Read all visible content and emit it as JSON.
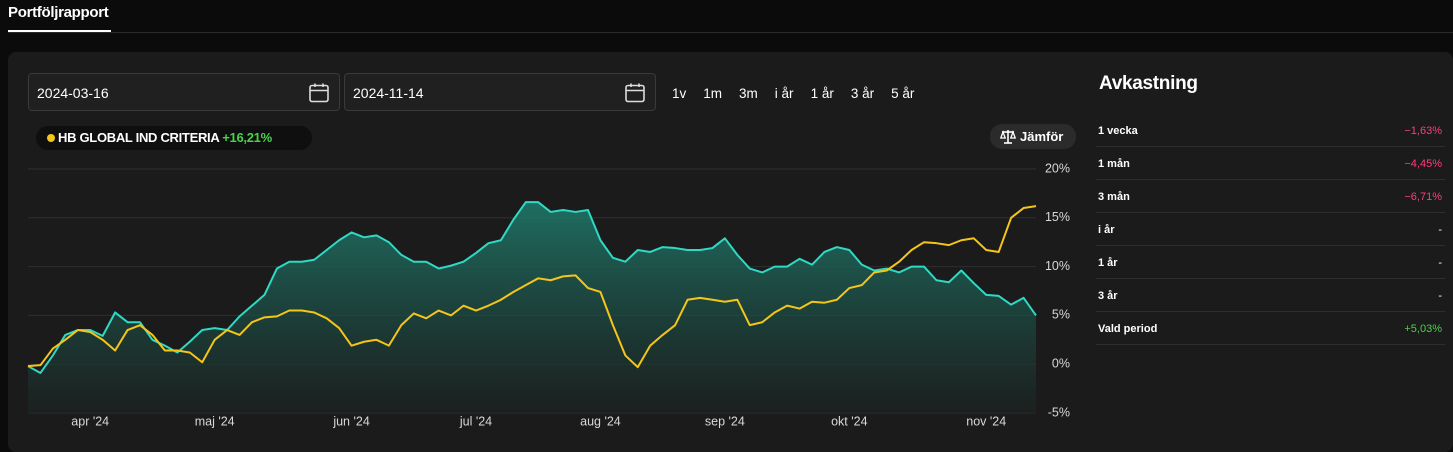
{
  "header": {
    "tab": "Portföljrapport"
  },
  "controls": {
    "start_date": "2024-03-16",
    "end_date": "2024-11-14",
    "periods": [
      "1v",
      "1m",
      "3m",
      "i år",
      "1 år",
      "3 år",
      "5 år"
    ],
    "compare": "Jämför"
  },
  "chart_data": {
    "type": "line",
    "categories": [
      null,
      null,
      null,
      null,
      null,
      "apr '24",
      null,
      null,
      null,
      null,
      null,
      null,
      null,
      null,
      null,
      "maj '24",
      null,
      null,
      null,
      null,
      null,
      null,
      null,
      null,
      null,
      null,
      "jun '24",
      null,
      null,
      null,
      null,
      null,
      null,
      null,
      null,
      null,
      "jul '24",
      null,
      null,
      null,
      null,
      null,
      null,
      null,
      null,
      null,
      "aug '24",
      null,
      null,
      null,
      null,
      null,
      null,
      null,
      null,
      null,
      "sep '24",
      null,
      null,
      null,
      null,
      null,
      null,
      null,
      null,
      null,
      "okt '24",
      null,
      null,
      null,
      null,
      null,
      null,
      null,
      null,
      null,
      null,
      "nov '24",
      null,
      null,
      null,
      null
    ],
    "series": [
      {
        "color": "#2fd9c4",
        "area": true,
        "values": [
          -0.2,
          -0.9,
          0.9,
          3.0,
          3.5,
          3.5,
          2.9,
          5.3,
          4.3,
          4.3,
          2.5,
          1.9,
          1.2,
          2.3,
          3.5,
          3.7,
          3.5,
          4.9,
          6.0,
          7.1,
          9.8,
          10.5,
          10.5,
          10.7,
          11.7,
          12.7,
          13.5,
          13.0,
          13.2,
          12.5,
          11.2,
          10.5,
          10.5,
          9.8,
          10.1,
          10.5,
          11.4,
          12.4,
          12.7,
          14.8,
          16.6,
          16.6,
          15.6,
          15.8,
          15.6,
          15.8,
          12.7,
          10.9,
          10.5,
          11.7,
          11.5,
          12.0,
          11.9,
          11.7,
          11.7,
          11.9,
          12.9,
          11.2,
          9.8,
          9.4,
          10.0,
          10.0,
          10.8,
          10.2,
          11.5,
          12.0,
          11.7,
          10.2,
          9.6,
          9.8,
          9.4,
          10.0,
          10.0,
          8.6,
          8.4,
          9.6,
          8.3,
          7.1,
          7.0,
          6.1,
          6.8,
          5.0
        ]
      },
      {
        "name": "HB GLOBAL IND CRITERIA",
        "return_label": "+16,21%",
        "color": "#f5c518",
        "values": [
          -0.2,
          -0.1,
          1.6,
          2.5,
          3.5,
          3.3,
          2.5,
          1.4,
          3.5,
          4.0,
          3.0,
          1.4,
          1.4,
          1.2,
          0.2,
          2.5,
          3.5,
          3.0,
          4.3,
          4.8,
          4.9,
          5.5,
          5.5,
          5.3,
          4.7,
          3.7,
          1.9,
          2.3,
          2.5,
          1.9,
          4.0,
          5.2,
          4.7,
          5.5,
          5.0,
          6.0,
          5.5,
          6.0,
          6.6,
          7.4,
          8.1,
          8.8,
          8.6,
          9.0,
          9.1,
          7.8,
          7.4,
          4.0,
          0.9,
          -0.3,
          1.9,
          3.0,
          4.0,
          6.6,
          6.8,
          6.6,
          6.4,
          6.6,
          4.0,
          4.3,
          5.3,
          6.0,
          5.7,
          6.4,
          6.3,
          6.6,
          7.8,
          8.1,
          9.4,
          9.6,
          10.5,
          11.7,
          12.5,
          12.4,
          12.2,
          12.7,
          12.9,
          11.7,
          11.5,
          15.0,
          16.0,
          16.2
        ]
      }
    ],
    "ylim": [
      -5,
      20
    ],
    "yticks": [
      {
        "value": 20,
        "label": "20%"
      },
      {
        "value": 15,
        "label": "15%"
      },
      {
        "value": 10,
        "label": "10%"
      },
      {
        "value": 5,
        "label": "5%"
      },
      {
        "value": 0,
        "label": "0%"
      },
      {
        "value": -5,
        "label": "-5%"
      }
    ],
    "grid": true
  },
  "returns": {
    "title": "Avkastning",
    "rows": [
      [
        "1 vecka",
        "−1,63%"
      ],
      [
        "1 mån",
        "−4,45%"
      ],
      [
        "3 mån",
        "−6,71%"
      ],
      [
        "i år",
        "-"
      ],
      [
        "1 år",
        "-"
      ],
      [
        "3 år",
        "-"
      ],
      [
        "Vald period",
        "+5,03%"
      ]
    ]
  }
}
